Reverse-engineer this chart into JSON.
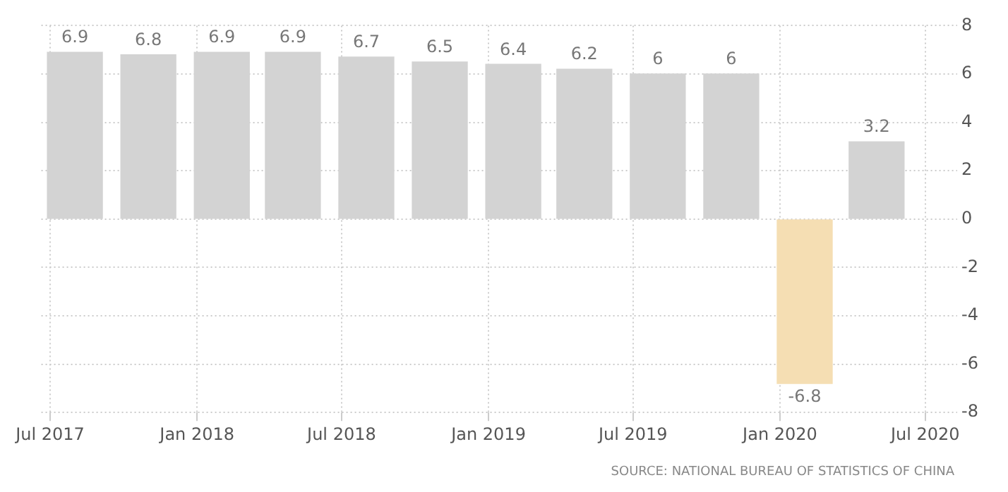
{
  "chart_data": {
    "type": "bar",
    "x": [
      "2017-08",
      "2017-11",
      "2018-02",
      "2018-05",
      "2018-08",
      "2018-11",
      "2019-02",
      "2019-05",
      "2019-08",
      "2019-11",
      "2020-02",
      "2020-05"
    ],
    "values": [
      6.9,
      6.8,
      6.9,
      6.9,
      6.7,
      6.5,
      6.4,
      6.2,
      6,
      6,
      -6.8,
      3.2
    ],
    "colors": [
      "#d3d3d3",
      "#d3d3d3",
      "#d3d3d3",
      "#d3d3d3",
      "#d3d3d3",
      "#d3d3d3",
      "#d3d3d3",
      "#d3d3d3",
      "#d3d3d3",
      "#d3d3d3",
      "#f5deb3",
      "#d3d3d3"
    ],
    "xlim": [
      "2017-06-20",
      "2020-08-10"
    ],
    "xticks": [
      {
        "value": "2017-07",
        "label": "Jul 2017"
      },
      {
        "value": "2018-01",
        "label": "Jan 2018"
      },
      {
        "value": "2018-07",
        "label": "Jul 2018"
      },
      {
        "value": "2019-01",
        "label": "Jan 2019"
      },
      {
        "value": "2019-07",
        "label": "Jul 2019"
      },
      {
        "value": "2020-01",
        "label": "Jan 2020"
      },
      {
        "value": "2020-07",
        "label": "Jul 2020"
      }
    ],
    "ylim": [
      -8,
      8
    ],
    "yticks": [
      -8,
      -6,
      -4,
      -2,
      0,
      2,
      4,
      6,
      8
    ],
    "grid": true,
    "data_labels": true,
    "annotations": [
      "SOURCE: NATIONAL BUREAU OF STATISTICS OF CHINA"
    ]
  }
}
